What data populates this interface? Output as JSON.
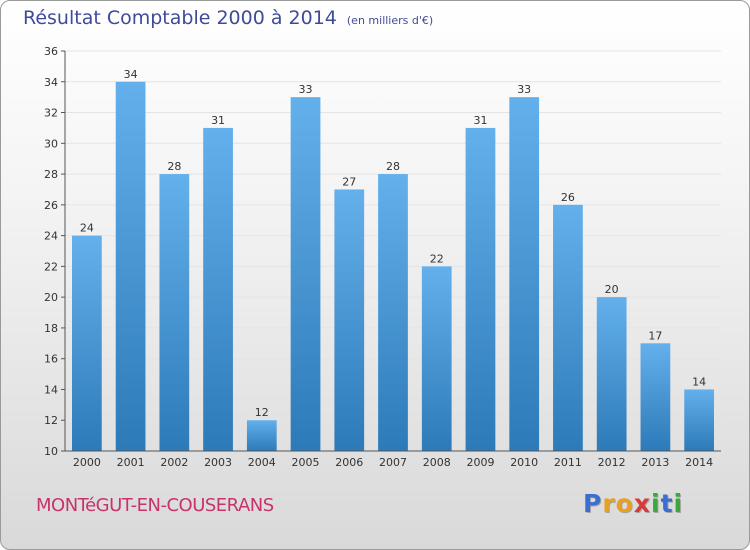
{
  "title": "Résultat Comptable 2000 à 2014",
  "unit": "(en milliers d'€)",
  "commune": "MONTéGUT-EN-COUSERANS",
  "brand": {
    "letters": [
      "P",
      "r",
      "o",
      "x",
      "i",
      "t",
      "i"
    ],
    "colors": [
      "#3a6fd0",
      "#e8a020",
      "#e8a020",
      "#d83a3a",
      "#3aa83a",
      "#3a6fd0",
      "#3aa83a"
    ]
  },
  "colors": {
    "bar_light": "#63b0ec",
    "bar_dark": "#2d7ab8",
    "grid": "#e4e4e4",
    "axis": "#555555",
    "title": "#3f4b99",
    "commune": "#c8336b"
  },
  "chart_data": {
    "type": "bar",
    "title": "Résultat Comptable 2000 à 2014",
    "ylabel": "(en milliers d'€)",
    "xlabel": "",
    "categories": [
      "2000",
      "2001",
      "2002",
      "2003",
      "2004",
      "2005",
      "2006",
      "2007",
      "2008",
      "2009",
      "2010",
      "2011",
      "2012",
      "2013",
      "2014"
    ],
    "values": [
      24,
      34,
      28,
      31,
      12,
      33,
      27,
      28,
      22,
      31,
      33,
      26,
      20,
      17,
      14
    ],
    "ylim": [
      10,
      36
    ],
    "yticks": [
      10,
      12,
      14,
      16,
      18,
      20,
      22,
      24,
      26,
      28,
      30,
      32,
      34,
      36
    ],
    "grid": true
  }
}
